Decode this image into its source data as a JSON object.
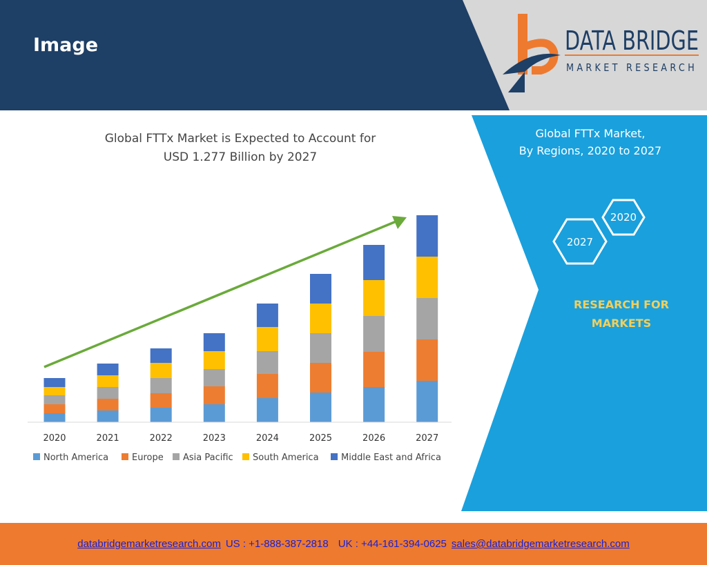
{
  "header": {
    "title": "Image"
  },
  "logo": {
    "name": "DATA BRIDGE",
    "tagline": "MARKET RESEARCH"
  },
  "side_panel": {
    "title_line1": "Global FTTx Market,",
    "title_line2": "By Regions, 2020 to 2027",
    "hex_a": "2020",
    "hex_b": "2027",
    "tag_line1": "RESEARCH FOR",
    "tag_line2": "MARKETS"
  },
  "footer": {
    "website": "databridgemarketresearch.com",
    "us_phone": "US : +1-888-387-2818",
    "uk_phone": "UK : +44-161-394-0625",
    "email": "sales@databridgemarketresearch.com"
  },
  "colors": {
    "header_bg": "#1e3f66",
    "side_bg": "#1aa0dc",
    "footer_bg": "#ee7a2f",
    "arrow": "#6aaa3a"
  },
  "chart_data": {
    "type": "bar",
    "stacked": true,
    "title_line1": "Global FTTx Market is Expected to Account for",
    "title_line2": "USD 1.277 Billion by 2027",
    "categories": [
      "2020",
      "2021",
      "2022",
      "2023",
      "2024",
      "2025",
      "2026",
      "2027"
    ],
    "series": [
      {
        "name": "North America",
        "color": "#5b9bd5",
        "values": [
          13,
          17,
          21,
          26,
          35,
          43,
          51,
          60
        ]
      },
      {
        "name": "Europe",
        "color": "#ed7d31",
        "values": [
          13,
          17,
          21,
          26,
          35,
          43,
          51,
          60
        ]
      },
      {
        "name": "Asia Pacific",
        "color": "#a5a5a5",
        "values": [
          13,
          17,
          22,
          25,
          33,
          43,
          52,
          60
        ]
      },
      {
        "name": "South America",
        "color": "#ffc000",
        "values": [
          12,
          17,
          22,
          26,
          35,
          43,
          52,
          60
        ]
      },
      {
        "name": "Middle East and Africa",
        "color": "#4472c4",
        "values": [
          13,
          17,
          21,
          26,
          34,
          43,
          51,
          60
        ]
      }
    ],
    "legend_position": "bottom",
    "grid": false,
    "trend_arrow": true
  }
}
